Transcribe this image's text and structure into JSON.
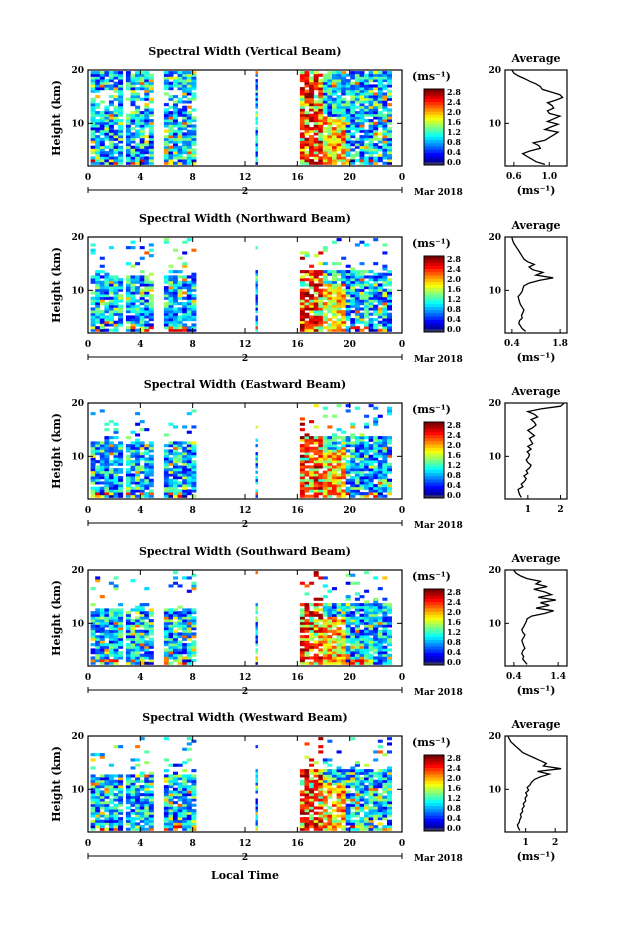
{
  "chart_data": [
    {
      "type": "heatmap",
      "title": "Spectral Width (Vertical Beam)",
      "ylabel": "Height (km)",
      "x_ticks": [
        "0",
        "4",
        "8",
        "12",
        "16",
        "20",
        "0"
      ],
      "y_ticks": [
        "20",
        "10"
      ],
      "date_label": "2",
      "month_label": "Mar 2018",
      "colorbar_unit": "(ms⁻¹)",
      "colorbar_ticks": [
        "2.8",
        "2.4",
        "2.0",
        "1.6",
        "1.2",
        "0.8",
        "0.4",
        "0.0"
      ],
      "xlim": [
        0,
        24
      ],
      "ylim": [
        2,
        20
      ],
      "cmin": 0,
      "cmax": 3,
      "average": {
        "title": "Average",
        "xlabel": "(ms⁻¹)",
        "x_ticks": [
          "0.6",
          "1.0"
        ],
        "y_ticks": [
          "20",
          "10"
        ],
        "xlim": [
          0.5,
          1.2
        ],
        "profile": [
          0.95,
          0.85,
          0.8,
          0.75,
          0.7,
          0.78,
          0.9,
          0.88,
          0.82,
          0.95,
          1.0,
          1.05,
          1.1,
          0.95,
          1.02,
          1.1,
          0.98,
          1.05,
          1.12,
          1.0,
          0.98,
          1.05,
          1.03,
          0.98,
          1.08,
          1.15,
          1.12,
          1.02,
          0.92,
          0.9,
          0.85,
          0.78,
          0.72,
          0.65,
          0.6,
          0.58
        ]
      }
    },
    {
      "type": "heatmap",
      "title": "Spectral Width (Northward Beam)",
      "ylabel": "Height (km)",
      "x_ticks": [
        "0",
        "4",
        "8",
        "12",
        "16",
        "20",
        "0"
      ],
      "y_ticks": [
        "20",
        "10"
      ],
      "date_label": "2",
      "month_label": "Mar 2018",
      "colorbar_unit": "(ms⁻¹)",
      "colorbar_ticks": [
        "2.8",
        "2.4",
        "2.0",
        "1.6",
        "1.2",
        "0.8",
        "0.4",
        "0.0"
      ],
      "xlim": [
        0,
        24
      ],
      "ylim": [
        2,
        20
      ],
      "cmin": 0,
      "cmax": 3,
      "average": {
        "title": "Average",
        "xlabel": "(ms⁻¹)",
        "x_ticks": [
          "0.4",
          "1.8"
        ],
        "y_ticks": [
          "20",
          "10"
        ],
        "xlim": [
          0.2,
          2.0
        ],
        "profile": [
          0.8,
          0.7,
          0.65,
          0.6,
          0.62,
          0.7,
          0.68,
          0.72,
          0.75,
          0.7,
          0.65,
          0.62,
          0.6,
          0.58,
          0.65,
          0.7,
          0.72,
          0.75,
          0.9,
          1.2,
          1.6,
          1.1,
          1.3,
          1.0,
          0.9,
          1.05,
          0.85,
          0.75,
          0.7,
          0.65,
          0.6,
          0.55,
          0.5,
          0.45,
          0.42,
          0.4
        ]
      }
    },
    {
      "type": "heatmap",
      "title": "Spectral Width (Eastward Beam)",
      "ylabel": "Height (km)",
      "x_ticks": [
        "0",
        "4",
        "8",
        "12",
        "16",
        "20",
        "0"
      ],
      "y_ticks": [
        "20",
        "10"
      ],
      "date_label": "2",
      "month_label": "Mar 2018",
      "colorbar_unit": "(ms⁻¹)",
      "colorbar_ticks": [
        "2.8",
        "2.4",
        "2.0",
        "1.6",
        "1.2",
        "0.8",
        "0.4",
        "0.0"
      ],
      "xlim": [
        0,
        24
      ],
      "ylim": [
        2,
        20
      ],
      "cmin": 0,
      "cmax": 3,
      "average": {
        "title": "Average",
        "xlabel": "",
        "x_ticks": [
          "1",
          "2"
        ],
        "y_ticks": [
          "20",
          "10"
        ],
        "xlim": [
          0.3,
          2.2
        ],
        "profile": [
          0.8,
          0.75,
          0.72,
          0.7,
          0.85,
          0.8,
          0.9,
          0.95,
          0.88,
          1.0,
          0.95,
          1.05,
          1.1,
          1.0,
          0.95,
          1.02,
          1.05,
          0.98,
          1.1,
          1.0,
          1.15,
          1.1,
          1.05,
          1.2,
          1.1,
          1.0,
          1.15,
          1.25,
          1.2,
          1.1,
          1.3,
          1.2,
          1.0,
          1.4,
          2.0,
          2.1
        ]
      }
    },
    {
      "type": "heatmap",
      "title": "Spectral Width (Southward Beam)",
      "ylabel": "Height (km)",
      "x_ticks": [
        "0",
        "4",
        "8",
        "12",
        "16",
        "20",
        "0"
      ],
      "y_ticks": [
        "20",
        "10"
      ],
      "date_label": "2",
      "month_label": "Mar 2018",
      "colorbar_unit": "(ms⁻¹)",
      "colorbar_ticks": [
        "2.8",
        "2.4",
        "2.0",
        "1.6",
        "1.2",
        "0.8",
        "0.4",
        "0.0"
      ],
      "xlim": [
        0,
        24
      ],
      "ylim": [
        2,
        20
      ],
      "cmin": 0,
      "cmax": 3,
      "average": {
        "title": "Average",
        "xlabel": "(ms⁻¹)",
        "x_ticks": [
          "0.4",
          "1.4"
        ],
        "y_ticks": [
          "20",
          "10"
        ],
        "xlim": [
          0.2,
          1.6
        ],
        "profile": [
          0.7,
          0.65,
          0.6,
          0.62,
          0.58,
          0.6,
          0.65,
          0.62,
          0.6,
          0.58,
          0.62,
          0.65,
          0.6,
          0.58,
          0.62,
          0.65,
          0.68,
          0.7,
          0.8,
          1.1,
          1.3,
          0.9,
          1.2,
          1.0,
          1.35,
          0.95,
          1.25,
          1.1,
          0.85,
          1.15,
          0.9,
          1.0,
          0.7,
          0.55,
          0.45,
          0.4
        ]
      }
    },
    {
      "type": "heatmap",
      "title": "Spectral Width (Westward Beam)",
      "ylabel": "Height (km)",
      "x_ticks": [
        "0",
        "4",
        "8",
        "12",
        "16",
        "20",
        "0"
      ],
      "y_ticks": [
        "20",
        "10"
      ],
      "date_label": "2",
      "month_label": "Mar 2018",
      "colorbar_unit": "(ms⁻¹)",
      "colorbar_ticks": [
        "2.8",
        "2.4",
        "2.0",
        "1.6",
        "1.2",
        "0.8",
        "0.4",
        "0.0"
      ],
      "xlim": [
        0,
        24
      ],
      "ylim": [
        2,
        20
      ],
      "cmin": 0,
      "cmax": 3,
      "average": {
        "title": "Average",
        "xlabel": "(ms⁻¹)",
        "x_ticks": [
          "1",
          "2"
        ],
        "y_ticks": [
          "20",
          "10"
        ],
        "xlim": [
          0.3,
          2.4
        ],
        "profile": [
          0.8,
          0.75,
          0.72,
          0.78,
          0.8,
          0.85,
          0.82,
          0.9,
          0.88,
          0.95,
          0.92,
          1.0,
          0.98,
          1.05,
          1.0,
          1.1,
          1.05,
          1.15,
          1.2,
          1.3,
          1.5,
          1.8,
          1.4,
          2.2,
          1.6,
          1.7,
          1.5,
          1.3,
          1.1,
          0.9,
          0.8,
          0.7,
          0.6,
          0.5,
          0.45,
          0.4
        ]
      }
    }
  ],
  "x_axis_label": "Local Time"
}
